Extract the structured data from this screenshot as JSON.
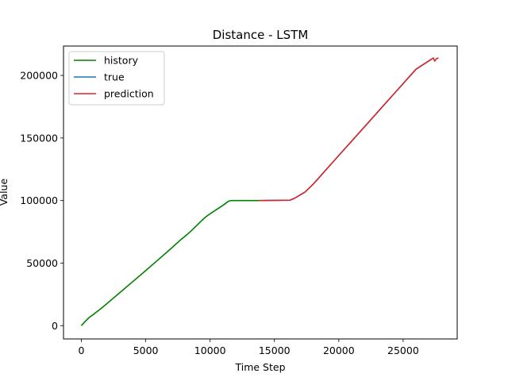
{
  "chart_data": {
    "type": "line",
    "title": "Distance - LSTM",
    "xlabel": "Time Step",
    "ylabel": "Value",
    "xlim": [
      -1390,
      29200
    ],
    "ylim": [
      -10600,
      223500
    ],
    "xticks": [
      0,
      5000,
      10000,
      15000,
      20000,
      25000
    ],
    "xtick_labels": [
      "0",
      "5000",
      "10000",
      "15000",
      "20000",
      "25000"
    ],
    "yticks": [
      0,
      50000,
      100000,
      150000,
      200000
    ],
    "ytick_labels": [
      "0",
      "50000",
      "100000",
      "150000",
      "200000"
    ],
    "legend_position": "upper-left",
    "grid": false,
    "series": [
      {
        "name": "history",
        "color": "#008000",
        "x": [
          0,
          300,
          600,
          1000,
          1500,
          2000,
          3000,
          4000,
          5000,
          6000,
          7000,
          7700,
          8000,
          8500,
          9000,
          9500,
          9800,
          10200,
          10600,
          11000,
          11400,
          11600,
          11800,
          12200,
          13000,
          13800
        ],
        "y": [
          0,
          3500,
          6500,
          9500,
          13500,
          17800,
          26500,
          35300,
          44000,
          53000,
          62000,
          68500,
          71000,
          75500,
          80500,
          85500,
          88000,
          90800,
          93500,
          96200,
          99300,
          100000,
          100000,
          100000,
          100000,
          100000
        ]
      },
      {
        "name": "true",
        "color": "#1f77b4",
        "x": [
          13800,
          15000,
          16200,
          16600,
          17000,
          17400,
          18000,
          20000,
          22000,
          24000,
          26000,
          27200
        ],
        "y": [
          100000,
          100200,
          100300,
          102000,
          104500,
          107000,
          113000,
          136000,
          159000,
          182000,
          205000,
          213000
        ]
      },
      {
        "name": "prediction",
        "color": "#d62728",
        "x": [
          13800,
          15000,
          16200,
          16600,
          17000,
          17400,
          18000,
          20000,
          22000,
          24000,
          26000,
          27200,
          27350,
          27450,
          27600,
          27750
        ],
        "y": [
          100000,
          100200,
          100300,
          102000,
          104500,
          107000,
          113000,
          136000,
          159000,
          182000,
          205000,
          213000,
          214000,
          211500,
          213500,
          214000
        ]
      }
    ]
  }
}
